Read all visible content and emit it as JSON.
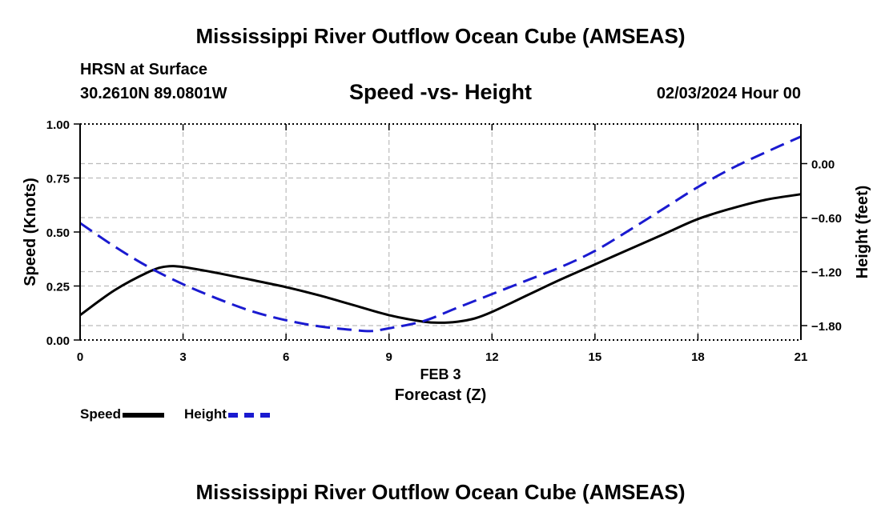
{
  "header": {
    "main_title": "Mississippi River Outflow Ocean Cube (AMSEAS)",
    "station_name": "HRSN at Surface",
    "station_coords": "30.2610N  89.0801W",
    "subtitle": "Speed -vs- Height",
    "datetime": "02/03/2024 Hour 00"
  },
  "footer": {
    "title": "Mississippi River Outflow Ocean Cube (AMSEAS)"
  },
  "legend": {
    "speed_label": "Speed",
    "height_label": "Height"
  },
  "colors": {
    "speed": "#000000",
    "height": "#1a1ad0",
    "grid": "#bbbbbb"
  },
  "chart_data": {
    "type": "line",
    "xlabel": "Forecast (Z)",
    "date_label": "FEB 3",
    "ylabel_left": "Speed (Knots)",
    "ylabel_right": "Height (feet)",
    "xlim": [
      0,
      21
    ],
    "ylim_left": [
      0,
      1
    ],
    "ylim_right": [
      -1.96,
      0.44
    ],
    "x_ticks": [
      0,
      3,
      6,
      9,
      12,
      15,
      18,
      21
    ],
    "x_tick_labels": [
      "0",
      "3",
      "6",
      "9",
      "12",
      "15",
      "18",
      "21"
    ],
    "y_left_ticks": [
      0,
      0.25,
      0.5,
      0.75,
      1.0
    ],
    "y_left_tick_labels": [
      "0.00",
      "0.25",
      "0.50",
      "0.75",
      "1.00"
    ],
    "y_right_ticks": [
      -1.8,
      -1.2,
      -0.6,
      0.0
    ],
    "y_right_tick_labels": [
      "−1.80",
      "−1.20",
      "−0.60",
      "0.00"
    ],
    "grid": true,
    "series": [
      {
        "name": "Speed",
        "axis": "left",
        "style": "solid",
        "x": [
          0,
          1,
          2,
          2.5,
          3,
          4,
          5,
          6,
          7,
          8,
          9,
          10,
          10.5,
          11,
          11.5,
          12,
          13,
          14,
          15,
          16,
          17,
          18,
          19,
          20,
          21
        ],
        "values": [
          0.115,
          0.23,
          0.315,
          0.34,
          0.338,
          0.31,
          0.278,
          0.245,
          0.205,
          0.16,
          0.115,
          0.085,
          0.08,
          0.085,
          0.1,
          0.13,
          0.205,
          0.28,
          0.35,
          0.42,
          0.49,
          0.56,
          0.61,
          0.65,
          0.675
        ]
      },
      {
        "name": "Height",
        "axis": "right",
        "style": "dashed",
        "x": [
          0,
          1,
          2,
          3,
          4,
          5,
          6,
          7,
          8,
          8.5,
          9,
          10,
          11,
          12,
          13,
          14,
          15,
          16,
          17,
          18,
          19,
          20,
          21
        ],
        "values": [
          -0.66,
          -0.92,
          -1.15,
          -1.34,
          -1.5,
          -1.64,
          -1.74,
          -1.81,
          -1.85,
          -1.86,
          -1.83,
          -1.75,
          -1.6,
          -1.45,
          -1.3,
          -1.15,
          -0.97,
          -0.74,
          -0.5,
          -0.26,
          -0.05,
          0.13,
          0.3
        ]
      }
    ]
  }
}
